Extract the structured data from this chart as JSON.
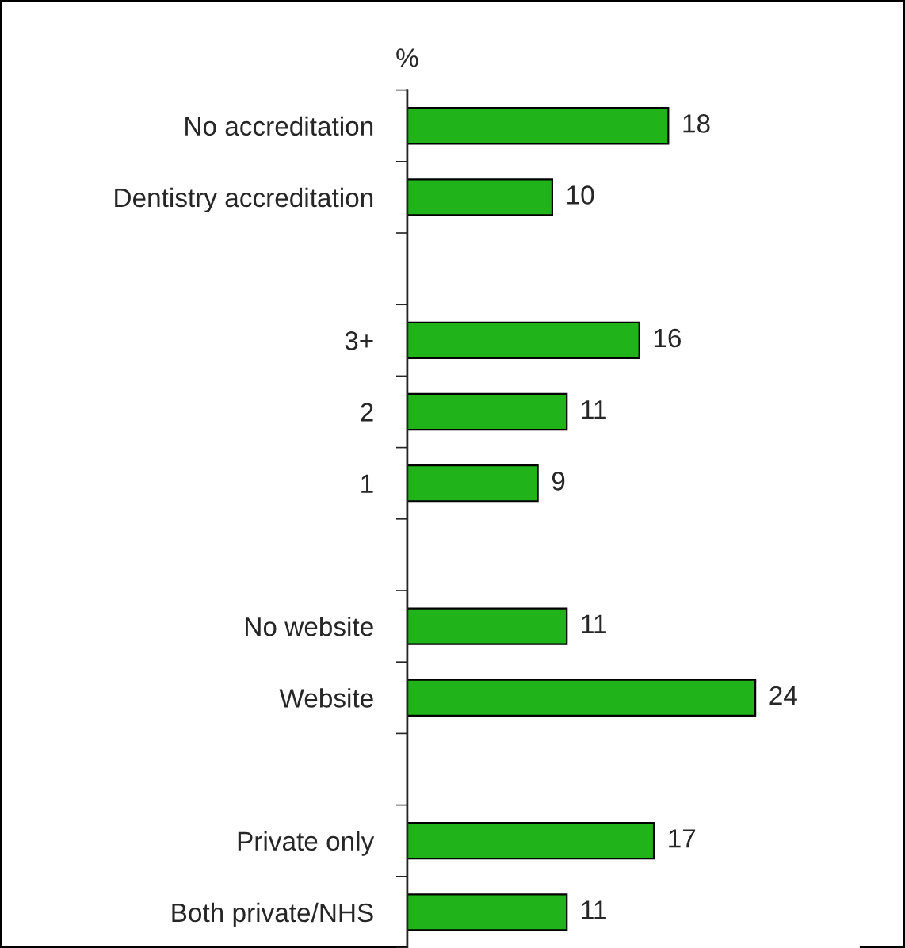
{
  "chart_data": {
    "type": "bar",
    "orientation": "horizontal",
    "data_labels": true,
    "grid": false,
    "legend": false,
    "categories": [
      "No accreditation",
      "Dentistry accreditation",
      null,
      "3+",
      "2",
      "1",
      null,
      "No website",
      "Website",
      null,
      "Private only",
      "Both private/NHS"
    ],
    "values": [
      18,
      10,
      null,
      16,
      11,
      9,
      null,
      11,
      24,
      null,
      17,
      11
    ],
    "color": "#20b41a",
    "annotations": [
      "%"
    ]
  }
}
